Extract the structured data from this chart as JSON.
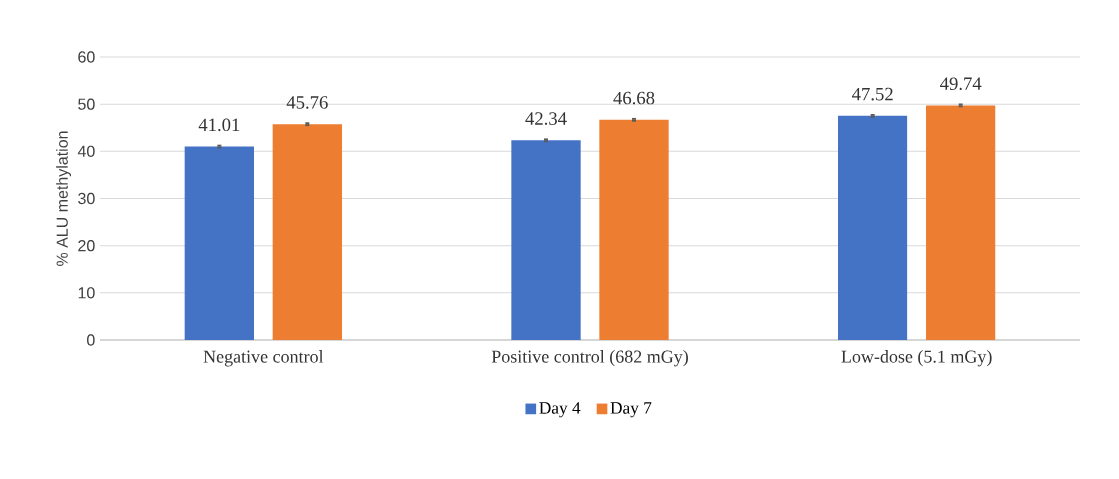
{
  "chart_data": {
    "type": "bar",
    "ylabel": "% ALU methylation",
    "categories": [
      "Negative control",
      "Positive control (682 mGy)",
      "Low-dose (5.1 mGy)"
    ],
    "series": [
      {
        "name": "Day 4",
        "color": "#4472c4",
        "values": [
          41.01,
          42.34,
          47.52
        ],
        "errors": [
          0.4,
          0.4,
          0.4
        ]
      },
      {
        "name": "Day 7",
        "color": "#ed7d31",
        "values": [
          45.76,
          46.68,
          49.74
        ],
        "errors": [
          0.4,
          0.4,
          0.4
        ]
      }
    ],
    "ylim": [
      0,
      60
    ],
    "yticks": [
      0,
      10,
      20,
      30,
      40,
      50,
      60
    ],
    "grid": "y",
    "legend": "bottom",
    "data_labels": true
  }
}
